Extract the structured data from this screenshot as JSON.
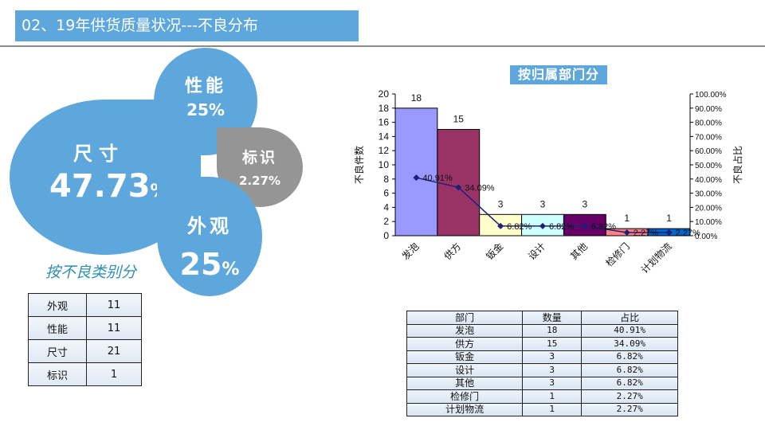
{
  "header": {
    "title": "02、19年供货质量状况---不良分布"
  },
  "category_section": {
    "caption": "按不良类别分",
    "petals": [
      {
        "name": "尺寸",
        "percent": "47.73",
        "unit": "%",
        "color": "#5ea7dd"
      },
      {
        "name": "性能",
        "percent": "25%",
        "color": "#5ea7dd"
      },
      {
        "name": "标识",
        "percent": "2.27%",
        "color": "#959595"
      },
      {
        "name": "外观",
        "percent": "25",
        "unit": "%",
        "color": "#5ea7dd"
      }
    ],
    "table": [
      {
        "category": "外观",
        "count": "11"
      },
      {
        "category": "性能",
        "count": "11"
      },
      {
        "category": "尺寸",
        "count": "21"
      },
      {
        "category": "标识",
        "count": "1"
      }
    ]
  },
  "department_section": {
    "title": "按归属部门分",
    "table": {
      "headers": [
        "部门",
        "数量",
        "占比"
      ],
      "rows": [
        [
          "发泡",
          "18",
          "40.91%"
        ],
        [
          "供方",
          "15",
          "34.09%"
        ],
        [
          "钣金",
          "3",
          "6.82%"
        ],
        [
          "设计",
          "3",
          "6.82%"
        ],
        [
          "其他",
          "3",
          "6.82%"
        ],
        [
          "检修门",
          "1",
          "2.27%"
        ],
        [
          "计划物流",
          "1",
          "2.27%"
        ]
      ]
    }
  },
  "chart_data": {
    "type": "bar",
    "title": "按归属部门分",
    "categories": [
      "发泡",
      "供方",
      "钣金",
      "设计",
      "其他",
      "检修门",
      "计划物流"
    ],
    "series": [
      {
        "name": "不良件数",
        "type": "bar",
        "axis": "left",
        "values": [
          18,
          15,
          3,
          3,
          3,
          1,
          1
        ],
        "colors": [
          "#9999ff",
          "#993366",
          "#ffffcc",
          "#ccffff",
          "#660066",
          "#ff8080",
          "#0066cc"
        ]
      },
      {
        "name": "不良占比",
        "type": "line",
        "axis": "right",
        "values": [
          40.91,
          34.09,
          6.82,
          6.82,
          6.82,
          2.27,
          2.27
        ],
        "labels": [
          "40.91%",
          "34.09%",
          "6.82%",
          "6.82%",
          "6.82%",
          "2.27%",
          "2.27%"
        ],
        "color": "#1f1f7a"
      }
    ],
    "xlabel": "",
    "ylabel": "不良件数",
    "y2label": "不良占比",
    "ylim": [
      0,
      20
    ],
    "yticks": [
      "0",
      "2",
      "4",
      "6",
      "8",
      "10",
      "12",
      "14",
      "16",
      "18",
      "20"
    ],
    "y2lim": [
      0,
      100
    ],
    "y2ticks": [
      "0.00%",
      "10.00%",
      "20.00%",
      "30.00%",
      "40.00%",
      "50.00%",
      "60.00%",
      "70.00%",
      "80.00%",
      "90.00%",
      "100.00%"
    ],
    "grid": false,
    "legend": "none"
  }
}
